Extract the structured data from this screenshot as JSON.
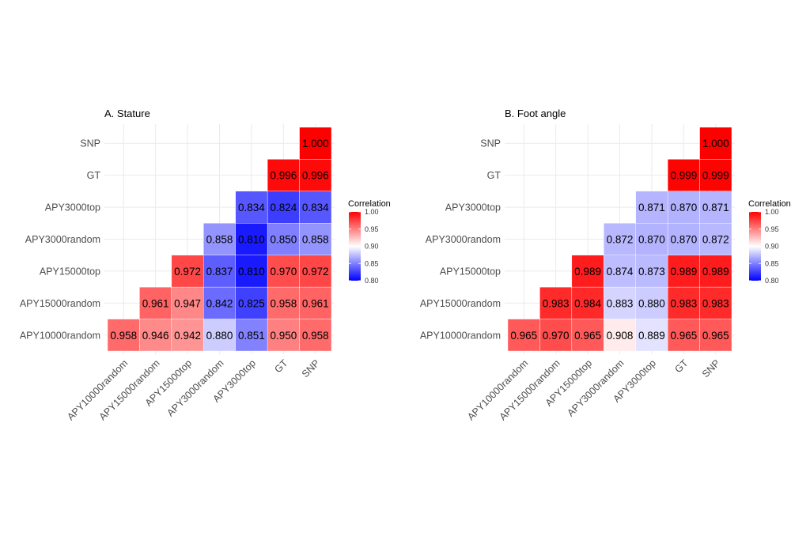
{
  "chart_data": [
    {
      "type": "heatmap",
      "title": "A. Stature",
      "xlabel": "",
      "ylabel": "",
      "x_categories": [
        "APY10000random",
        "APY15000random",
        "APY15000top",
        "APY3000random",
        "APY3000top",
        "GT",
        "SNP"
      ],
      "y_categories": [
        "APY10000random",
        "APY15000random",
        "APY15000top",
        "APY3000random",
        "APY3000top",
        "GT",
        "SNP"
      ],
      "layout": "lower-triangle (row i shown for columns 0..i plus GT, SNP)",
      "cells": [
        {
          "y": "SNP",
          "x": "SNP",
          "value": 1.0
        },
        {
          "y": "GT",
          "x": "GT",
          "value": 0.996
        },
        {
          "y": "GT",
          "x": "SNP",
          "value": 0.996
        },
        {
          "y": "APY3000top",
          "x": "APY3000top",
          "value": 0.834
        },
        {
          "y": "APY3000top",
          "x": "GT",
          "value": 0.824
        },
        {
          "y": "APY3000top",
          "x": "SNP",
          "value": 0.834
        },
        {
          "y": "APY3000random",
          "x": "APY3000random",
          "value": 0.858
        },
        {
          "y": "APY3000random",
          "x": "APY3000top",
          "value": 0.81
        },
        {
          "y": "APY3000random",
          "x": "GT",
          "value": 0.85
        },
        {
          "y": "APY3000random",
          "x": "SNP",
          "value": 0.858
        },
        {
          "y": "APY15000top",
          "x": "APY15000top",
          "value": 0.972
        },
        {
          "y": "APY15000top",
          "x": "APY3000random",
          "value": 0.837
        },
        {
          "y": "APY15000top",
          "x": "APY3000top",
          "value": 0.81
        },
        {
          "y": "APY15000top",
          "x": "GT",
          "value": 0.97
        },
        {
          "y": "APY15000top",
          "x": "SNP",
          "value": 0.972
        },
        {
          "y": "APY15000random",
          "x": "APY15000random",
          "value": 0.961
        },
        {
          "y": "APY15000random",
          "x": "APY15000top",
          "value": 0.947
        },
        {
          "y": "APY15000random",
          "x": "APY3000random",
          "value": 0.842
        },
        {
          "y": "APY15000random",
          "x": "APY3000top",
          "value": 0.825
        },
        {
          "y": "APY15000random",
          "x": "GT",
          "value": 0.958
        },
        {
          "y": "APY15000random",
          "x": "SNP",
          "value": 0.961
        },
        {
          "y": "APY10000random",
          "x": "APY10000random",
          "value": 0.958
        },
        {
          "y": "APY10000random",
          "x": "APY15000random",
          "value": 0.946
        },
        {
          "y": "APY10000random",
          "x": "APY15000top",
          "value": 0.942
        },
        {
          "y": "APY10000random",
          "x": "APY3000random",
          "value": 0.88
        },
        {
          "y": "APY10000random",
          "x": "APY3000top",
          "value": 0.851
        },
        {
          "y": "APY10000random",
          "x": "GT",
          "value": 0.95
        },
        {
          "y": "APY10000random",
          "x": "SNP",
          "value": 0.958
        }
      ],
      "legend": {
        "title": "Correlation",
        "position": "right",
        "range": [
          0.8,
          1.0
        ],
        "midpoint": 0.9,
        "ticks": [
          "1.00",
          "0.95",
          "0.90",
          "0.85",
          "0.80"
        ],
        "low_color": "#0000FF",
        "mid_color": "#FFFFFF",
        "high_color": "#FF0000"
      },
      "grid": true
    },
    {
      "type": "heatmap",
      "title": "B. Foot angle",
      "xlabel": "",
      "ylabel": "",
      "x_categories": [
        "APY10000random",
        "APY15000random",
        "APY15000top",
        "APY3000random",
        "APY3000top",
        "GT",
        "SNP"
      ],
      "y_categories": [
        "APY10000random",
        "APY15000random",
        "APY15000top",
        "APY3000random",
        "APY3000top",
        "GT",
        "SNP"
      ],
      "layout": "lower-triangle (row i shown for columns 0..i plus GT, SNP)",
      "cells": [
        {
          "y": "SNP",
          "x": "SNP",
          "value": 1.0
        },
        {
          "y": "GT",
          "x": "GT",
          "value": 0.999
        },
        {
          "y": "GT",
          "x": "SNP",
          "value": 0.999
        },
        {
          "y": "APY3000top",
          "x": "APY3000top",
          "value": 0.871
        },
        {
          "y": "APY3000top",
          "x": "GT",
          "value": 0.87
        },
        {
          "y": "APY3000top",
          "x": "SNP",
          "value": 0.871
        },
        {
          "y": "APY3000random",
          "x": "APY3000random",
          "value": 0.872
        },
        {
          "y": "APY3000random",
          "x": "APY3000top",
          "value": 0.87
        },
        {
          "y": "APY3000random",
          "x": "GT",
          "value": 0.87
        },
        {
          "y": "APY3000random",
          "x": "SNP",
          "value": 0.872
        },
        {
          "y": "APY15000top",
          "x": "APY15000top",
          "value": 0.989
        },
        {
          "y": "APY15000top",
          "x": "APY3000random",
          "value": 0.874
        },
        {
          "y": "APY15000top",
          "x": "APY3000top",
          "value": 0.873
        },
        {
          "y": "APY15000top",
          "x": "GT",
          "value": 0.989
        },
        {
          "y": "APY15000top",
          "x": "SNP",
          "value": 0.989
        },
        {
          "y": "APY15000random",
          "x": "APY15000random",
          "value": 0.983
        },
        {
          "y": "APY15000random",
          "x": "APY15000top",
          "value": 0.984
        },
        {
          "y": "APY15000random",
          "x": "APY3000random",
          "value": 0.883
        },
        {
          "y": "APY15000random",
          "x": "APY3000top",
          "value": 0.88
        },
        {
          "y": "APY15000random",
          "x": "GT",
          "value": 0.983
        },
        {
          "y": "APY15000random",
          "x": "SNP",
          "value": 0.983
        },
        {
          "y": "APY10000random",
          "x": "APY10000random",
          "value": 0.965
        },
        {
          "y": "APY10000random",
          "x": "APY15000random",
          "value": 0.97
        },
        {
          "y": "APY10000random",
          "x": "APY15000top",
          "value": 0.965
        },
        {
          "y": "APY10000random",
          "x": "APY3000random",
          "value": 0.908
        },
        {
          "y": "APY10000random",
          "x": "APY3000top",
          "value": 0.889
        },
        {
          "y": "APY10000random",
          "x": "GT",
          "value": 0.965
        },
        {
          "y": "APY10000random",
          "x": "SNP",
          "value": 0.965
        }
      ],
      "legend": {
        "title": "Correlation",
        "position": "right",
        "range": [
          0.8,
          1.0
        ],
        "midpoint": 0.9,
        "ticks": [
          "1.00",
          "0.95",
          "0.90",
          "0.85",
          "0.80"
        ],
        "low_color": "#0000FF",
        "mid_color": "#FFFFFF",
        "high_color": "#FF0000"
      },
      "grid": true
    }
  ]
}
